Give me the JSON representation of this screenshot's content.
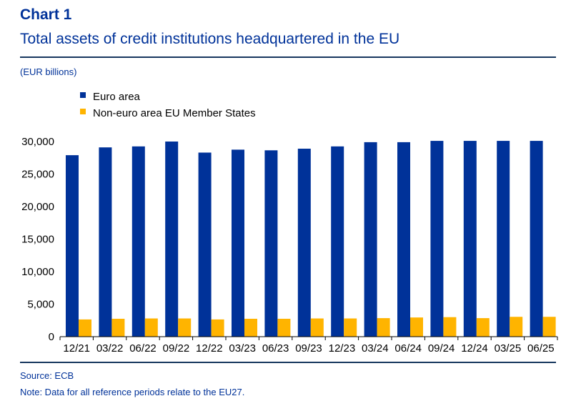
{
  "header": {
    "chart_label": "Chart 1",
    "title": "Total assets of credit institutions headquartered in the EU",
    "units": "(EUR billions)"
  },
  "footer": {
    "source": "Source: ECB",
    "note": "Note: Data for all reference periods relate to the EU27."
  },
  "colors": {
    "euro_area": "#003299",
    "non_euro_area": "#ffb400",
    "header_text": "#003299",
    "rule": "#17375e"
  },
  "chart_data": {
    "type": "bar",
    "categories": [
      "12/21",
      "03/22",
      "06/22",
      "09/22",
      "12/22",
      "03/23",
      "06/23",
      "09/23",
      "12/23",
      "03/24",
      "06/24",
      "09/24",
      "12/24",
      "03/25",
      "06/25"
    ],
    "series": [
      {
        "name": "Euro area",
        "color": "#003299",
        "values": [
          27900,
          29100,
          29250,
          30000,
          28300,
          28750,
          28650,
          28900,
          29250,
          29900,
          29900,
          30100,
          30100,
          30100,
          30100
        ]
      },
      {
        "name": "Non-euro area EU Member States",
        "color": "#ffb400",
        "values": [
          2650,
          2750,
          2800,
          2800,
          2650,
          2750,
          2750,
          2800,
          2800,
          2850,
          2950,
          3000,
          2850,
          3050,
          3050
        ]
      }
    ],
    "yticks": [
      "0",
      "5,000",
      "10,000",
      "15,000",
      "20,000",
      "25,000",
      "30,000"
    ],
    "ylim": [
      0,
      30000
    ],
    "grid": false,
    "legend_position": "top-left"
  }
}
